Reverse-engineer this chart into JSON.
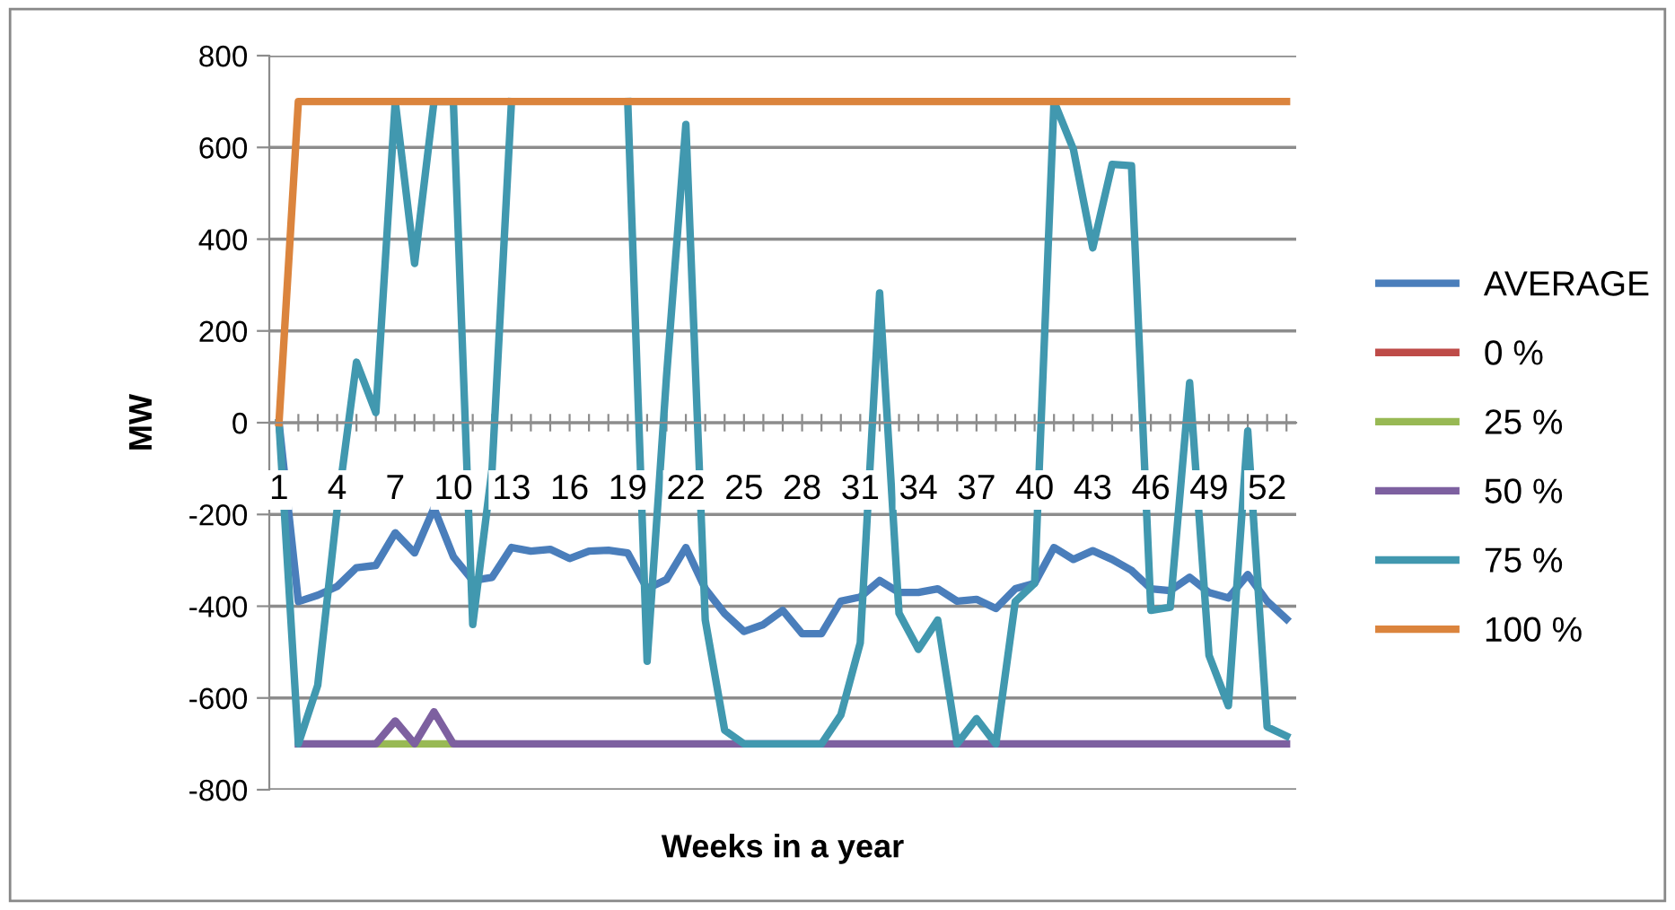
{
  "chart_data": {
    "type": "line",
    "xlabel": "Weeks in a year",
    "ylabel": "MW",
    "categories": [
      "1",
      null,
      null,
      "4",
      null,
      null,
      "7",
      null,
      null,
      "10",
      null,
      null,
      "13",
      null,
      null,
      "16",
      null,
      null,
      "19",
      null,
      null,
      "22",
      null,
      null,
      "25",
      null,
      null,
      "28",
      null,
      null,
      "31",
      null,
      null,
      "34",
      null,
      null,
      "37",
      null,
      null,
      "40",
      null,
      null,
      "43",
      null,
      null,
      "46",
      null,
      null,
      "49",
      null,
      null,
      "52",
      null
    ],
    "ylim": [
      -800,
      800
    ],
    "yticks": [
      -800,
      -600,
      -400,
      -200,
      0,
      200,
      400,
      600,
      800
    ],
    "grid": "y",
    "legend": "right",
    "marker": "none",
    "line_style": "solid",
    "series": [
      {
        "name": "AVERAGE",
        "color": "#4a7ebb",
        "values": [
          0,
          -390,
          -376,
          -357,
          -316,
          -311,
          -240,
          -284,
          -186,
          -292,
          -344,
          -337,
          -272,
          -280,
          -276,
          -296,
          -280,
          -278,
          -284,
          -362,
          -342,
          -272,
          -362,
          -416,
          -455,
          -440,
          -409,
          -460,
          -460,
          -389,
          -380,
          -344,
          -370,
          -370,
          -362,
          -389,
          -385,
          -405,
          -362,
          -350,
          -272,
          -298,
          -279,
          -298,
          -322,
          -362,
          -366,
          -337,
          -370,
          -382,
          -331,
          -389,
          -428
        ]
      },
      {
        "name": "0 %",
        "color": "#be4b48",
        "values": [
          null,
          null,
          null,
          null,
          null,
          null,
          null,
          null,
          null,
          null,
          null,
          null,
          null,
          null,
          null,
          null,
          null,
          null,
          null,
          null,
          null,
          null,
          null,
          null,
          null,
          null,
          null,
          null,
          null,
          null,
          null,
          null,
          null,
          null,
          null,
          null,
          null,
          null,
          null,
          null,
          null,
          null,
          null,
          null,
          null,
          null,
          null,
          null,
          null,
          null,
          null,
          null,
          null
        ]
      },
      {
        "name": "25 %",
        "color": "#98b954",
        "values": [
          null,
          null,
          null,
          null,
          null,
          -700,
          -700,
          -700,
          -700,
          -700,
          null,
          null,
          null,
          null,
          null,
          null,
          null,
          null,
          null,
          null,
          null,
          null,
          null,
          null,
          null,
          null,
          null,
          null,
          null,
          null,
          null,
          null,
          null,
          null,
          null,
          null,
          null,
          null,
          null,
          null,
          null,
          null,
          null,
          null,
          null,
          null,
          null,
          null,
          null,
          null,
          null,
          null,
          null
        ]
      },
      {
        "name": "50 %",
        "color": "#7d60a0",
        "values": [
          null,
          -700,
          -700,
          -700,
          -700,
          -700,
          -650,
          -700,
          -630,
          -700,
          -700,
          -700,
          -700,
          -700,
          -700,
          -700,
          -700,
          -700,
          -700,
          -700,
          -700,
          -700,
          -700,
          -700,
          -700,
          -700,
          -700,
          -700,
          -700,
          -700,
          -700,
          -700,
          -700,
          -700,
          -700,
          -700,
          -700,
          -700,
          -700,
          -700,
          -700,
          -700,
          -700,
          -700,
          -700,
          -700,
          -700,
          -700,
          -700,
          -700,
          -700,
          -700,
          -700
        ]
      },
      {
        "name": "75 %",
        "color": "#4198af",
        "values": [
          0,
          -700,
          -572,
          -190,
          132,
          22,
          700,
          347,
          700,
          700,
          -440,
          -100,
          700,
          null,
          null,
          null,
          null,
          null,
          700,
          -520,
          100,
          650,
          -430,
          -670,
          -700,
          -700,
          -700,
          -700,
          -700,
          -637,
          -480,
          283,
          -415,
          -494,
          -430,
          -700,
          -645,
          -700,
          -390,
          -350,
          700,
          596,
          381,
          563,
          560,
          -409,
          -402,
          87,
          -507,
          -617,
          -18,
          -663,
          -683
        ]
      },
      {
        "name": "100 %",
        "color": "#db843d",
        "values": [
          0,
          700,
          700,
          700,
          700,
          700,
          700,
          700,
          700,
          700,
          700,
          700,
          700,
          700,
          700,
          700,
          700,
          700,
          700,
          700,
          700,
          700,
          700,
          700,
          700,
          700,
          700,
          700,
          700,
          700,
          700,
          700,
          700,
          700,
          700,
          700,
          700,
          700,
          700,
          700,
          700,
          700,
          700,
          700,
          700,
          700,
          700,
          700,
          700,
          700,
          700,
          700,
          700
        ]
      }
    ]
  }
}
